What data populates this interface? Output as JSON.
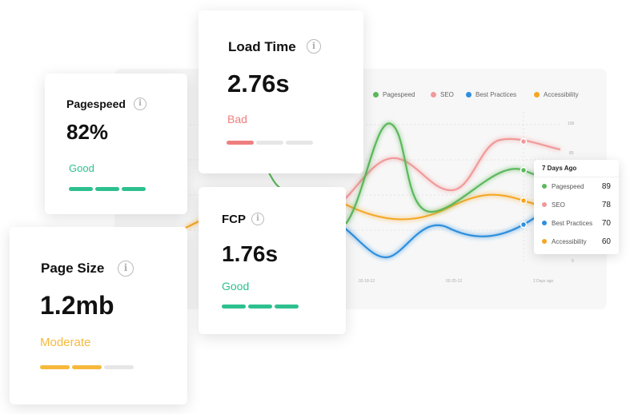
{
  "cards": {
    "pagespeed": {
      "title": "Pagespeed",
      "value": "82%",
      "status": "Good",
      "level": 3,
      "bar_color": "#2ec08f"
    },
    "load_time": {
      "title": "Load Time",
      "value": "2.76s",
      "status": "Bad",
      "level": 1,
      "bar_color": "#ee7f7f"
    },
    "fcp": {
      "title": "FCP",
      "value": "1.76s",
      "status": "Good",
      "level": 3,
      "bar_color": "#2ec08f"
    },
    "page_size": {
      "title": "Page Size",
      "value": "1.2mb",
      "status": "Moderate",
      "level": 2,
      "bar_color": "#f6b93b"
    }
  },
  "info_icon": "i",
  "legend": [
    {
      "label": "Pagespeed",
      "color": "#5cb85c"
    },
    {
      "label": "SEO",
      "color": "#f09a9a"
    },
    {
      "label": "Best Practices",
      "color": "#2f8fdd"
    },
    {
      "label": "Accessibility",
      "color": "#f5a623"
    }
  ],
  "tooltip": {
    "title": "7 Days Ago",
    "rows": [
      {
        "label": "Pagespeed",
        "value": "89",
        "color": "#5cb85c"
      },
      {
        "label": "SEO",
        "value": "78",
        "color": "#f09a9a"
      },
      {
        "label": "Best Practices",
        "value": "70",
        "color": "#2f8fdd"
      },
      {
        "label": "Accessibility",
        "value": "60",
        "color": "#f5a623"
      }
    ]
  },
  "axis": {
    "y_ticks": [
      "100",
      "80",
      "0"
    ],
    "x_ticks": [
      "02-18-12",
      "02-25-12",
      "2 Days ago"
    ]
  },
  "colors": {
    "inactive_bar": "#e6e6e6"
  }
}
